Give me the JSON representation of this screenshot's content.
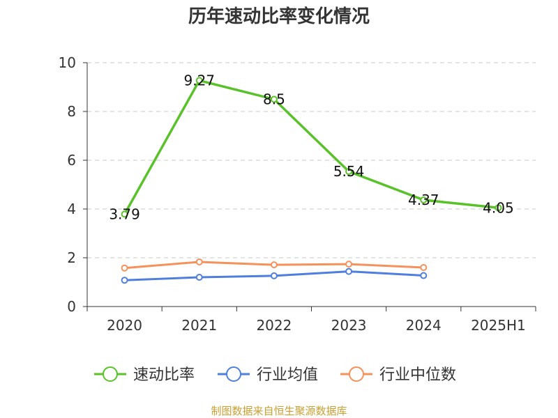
{
  "chart_data": {
    "type": "line",
    "title": "历年速动比率变化情况",
    "categories": [
      "2020",
      "2021",
      "2022",
      "2023",
      "2024",
      "2025H1"
    ],
    "ylim": [
      0,
      10
    ],
    "yticks": [
      "0",
      "2",
      "4",
      "6",
      "8",
      "10"
    ],
    "grid": true,
    "legend_position": "bottom",
    "series": [
      {
        "name": "速动比率",
        "color": "#5ac229",
        "values": [
          3.79,
          9.27,
          8.5,
          5.54,
          4.37,
          4.05
        ],
        "labels": [
          "3.79",
          "9.27",
          "8.5",
          "5.54",
          "4.37",
          "4.05"
        ]
      },
      {
        "name": "行业均值",
        "color": "#4f7fdc",
        "values": [
          1.08,
          1.2,
          1.26,
          1.44,
          1.27,
          null
        ]
      },
      {
        "name": "行业中位数",
        "color": "#f5915a",
        "values": [
          1.58,
          1.83,
          1.71,
          1.74,
          1.6,
          null
        ]
      }
    ]
  },
  "source_text": "制图数据来自恒生聚源数据库"
}
